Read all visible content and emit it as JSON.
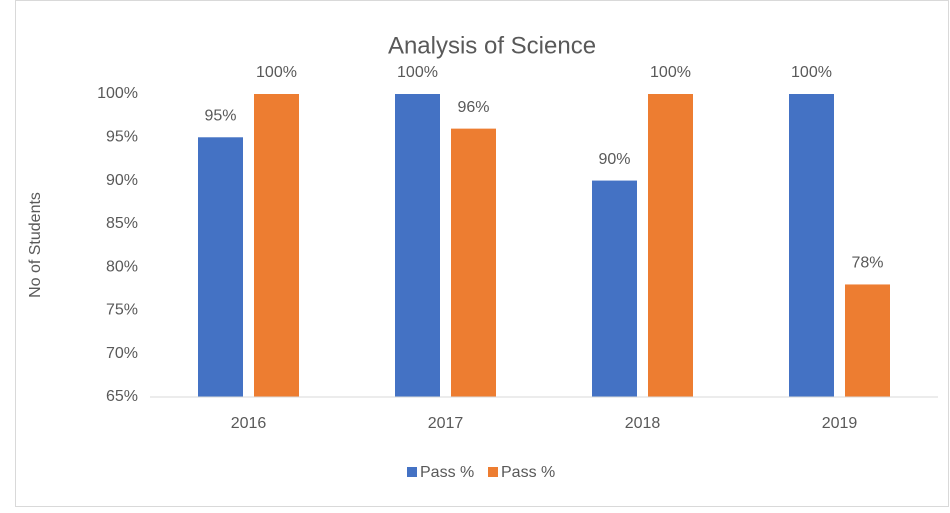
{
  "chart_data": {
    "type": "bar",
    "title": "Analysis of Science",
    "y_label": "No of Students",
    "categories": [
      "2016",
      "2017",
      "2018",
      "2019"
    ],
    "series": [
      {
        "name": "Pass %",
        "color": "#4472c4",
        "values": [
          95,
          100,
          90,
          100
        ],
        "value_labels": [
          "95%",
          "100%",
          "90%",
          "100%"
        ]
      },
      {
        "name": "Pass %",
        "color": "#ed7d31",
        "values": [
          100,
          96,
          100,
          78
        ],
        "value_labels": [
          "100%",
          "96%",
          "100%",
          "78%"
        ]
      }
    ],
    "ylim": [
      65,
      100
    ],
    "yticks": [
      {
        "value": 65,
        "label": "65%"
      },
      {
        "value": 70,
        "label": "70%"
      },
      {
        "value": 75,
        "label": "75%"
      },
      {
        "value": 80,
        "label": "80%"
      },
      {
        "value": 85,
        "label": "85%"
      },
      {
        "value": 90,
        "label": "90%"
      },
      {
        "value": 95,
        "label": "95%"
      },
      {
        "value": 100,
        "label": "100%"
      }
    ],
    "grid": false,
    "legend": "bottom"
  }
}
